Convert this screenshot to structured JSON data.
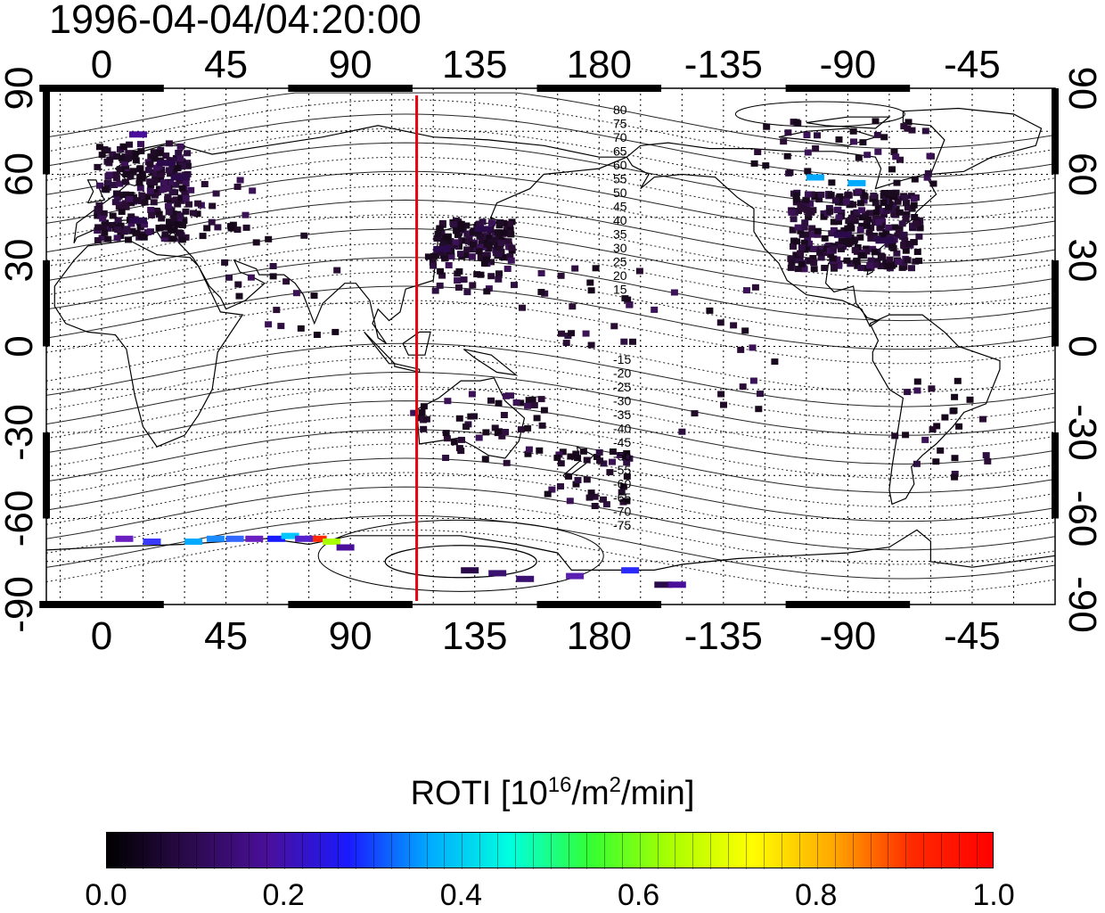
{
  "title": "1996-04-04/04:20:00",
  "axes": {
    "lon_ticks": [
      "0",
      "45",
      "90",
      "135",
      "180",
      "-135",
      "-90",
      "-45"
    ],
    "lat_ticks": [
      "90",
      "60",
      "30",
      "0",
      "-30",
      "-60",
      "-90"
    ]
  },
  "terminator": {
    "longitude": 114,
    "color": "#e8000b"
  },
  "contour_labels_north": [
    "80",
    "75",
    "70",
    "65",
    "60",
    "55",
    "50",
    "45",
    "40",
    "35",
    "30",
    "25",
    "20",
    "15"
  ],
  "contour_labels_south": [
    "-15",
    "-20",
    "-25",
    "-30",
    "-35",
    "-40",
    "-45",
    "-50",
    "-55",
    "-60",
    "-65",
    "-70",
    "-75"
  ],
  "colorbar": {
    "title_prefix": "ROTI  [10",
    "title_sup1": "16",
    "title_mid": "/m",
    "title_sup2": "2",
    "title_suffix": "/min]",
    "ticks": [
      "0.0",
      "0.2",
      "0.4",
      "0.6",
      "0.8",
      "1.0"
    ],
    "min": 0.0,
    "max": 1.0,
    "colormap": [
      "#000000",
      "#2a0a4a",
      "#4a0f9a",
      "#1a1aff",
      "#00aaff",
      "#00ffe0",
      "#33ff33",
      "#aaff00",
      "#ffff00",
      "#ffaa00",
      "#ff2a00",
      "#ff0000"
    ]
  },
  "chart_data": {
    "type": "heatmap",
    "title": "1996-04-04/04:20:00",
    "x_axis": "longitude",
    "y_axis": "latitude",
    "xlim": [
      -20,
      345
    ],
    "ylim": [
      -90,
      90
    ],
    "cells": [
      {
        "lon": 10,
        "lat": 75,
        "roti": 0.2
      },
      {
        "lon": 20,
        "lat": 65,
        "roti": 0.05
      },
      {
        "lon": 25,
        "lat": 60,
        "roti": 0.05
      },
      {
        "lon": 10,
        "lat": 45,
        "roti": 0.05
      },
      {
        "lon": 120,
        "lat": 35,
        "roti": 0.05
      },
      {
        "lon": 135,
        "lat": 42,
        "roti": 0.05
      },
      {
        "lon": 265,
        "lat": 40,
        "roti": 0.05
      },
      {
        "lon": 280,
        "lat": 38,
        "roti": 0.05
      },
      {
        "lon": 255,
        "lat": 60,
        "roti": 0.35
      },
      {
        "lon": 270,
        "lat": 58,
        "roti": 0.4
      },
      {
        "lon": 30,
        "lat": -67,
        "roti": 0.35
      },
      {
        "lon": 60,
        "lat": -66,
        "roti": 0.25
      },
      {
        "lon": 75,
        "lat": -66,
        "roti": 0.95
      },
      {
        "lon": 80,
        "lat": -67,
        "roti": 0.65
      },
      {
        "lon": 130,
        "lat": -77,
        "roti": 0.1
      },
      {
        "lon": 200,
        "lat": -82,
        "roti": 0.1
      }
    ]
  }
}
